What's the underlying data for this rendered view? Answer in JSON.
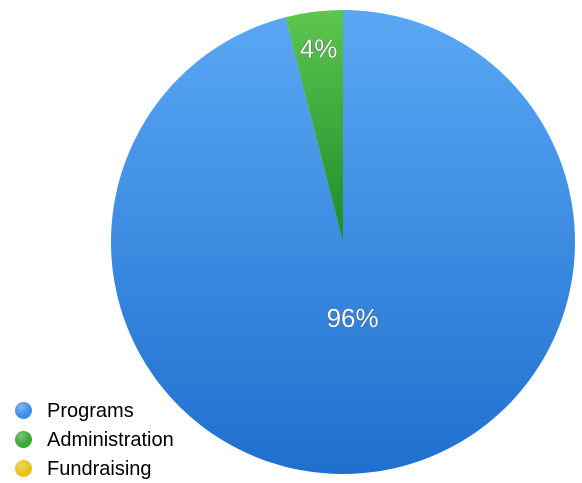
{
  "chart_data": {
    "type": "pie",
    "title": "",
    "categories": [
      "Programs",
      "Administration",
      "Fundraising"
    ],
    "values": [
      96,
      4,
      0
    ],
    "value_labels": [
      "96%",
      "4%",
      ""
    ],
    "colors": [
      "#3e8ee6",
      "#3aa83a",
      "#e6c21c"
    ],
    "legend_position": "bottom-left",
    "start_angle_deg": 0,
    "direction": "clockwise"
  },
  "legend": [
    {
      "label": "Programs",
      "color": "#3e8ee6"
    },
    {
      "label": "Administration",
      "color": "#3aa83a"
    },
    {
      "label": "Fundraising",
      "color": "#e6c21c"
    }
  ]
}
